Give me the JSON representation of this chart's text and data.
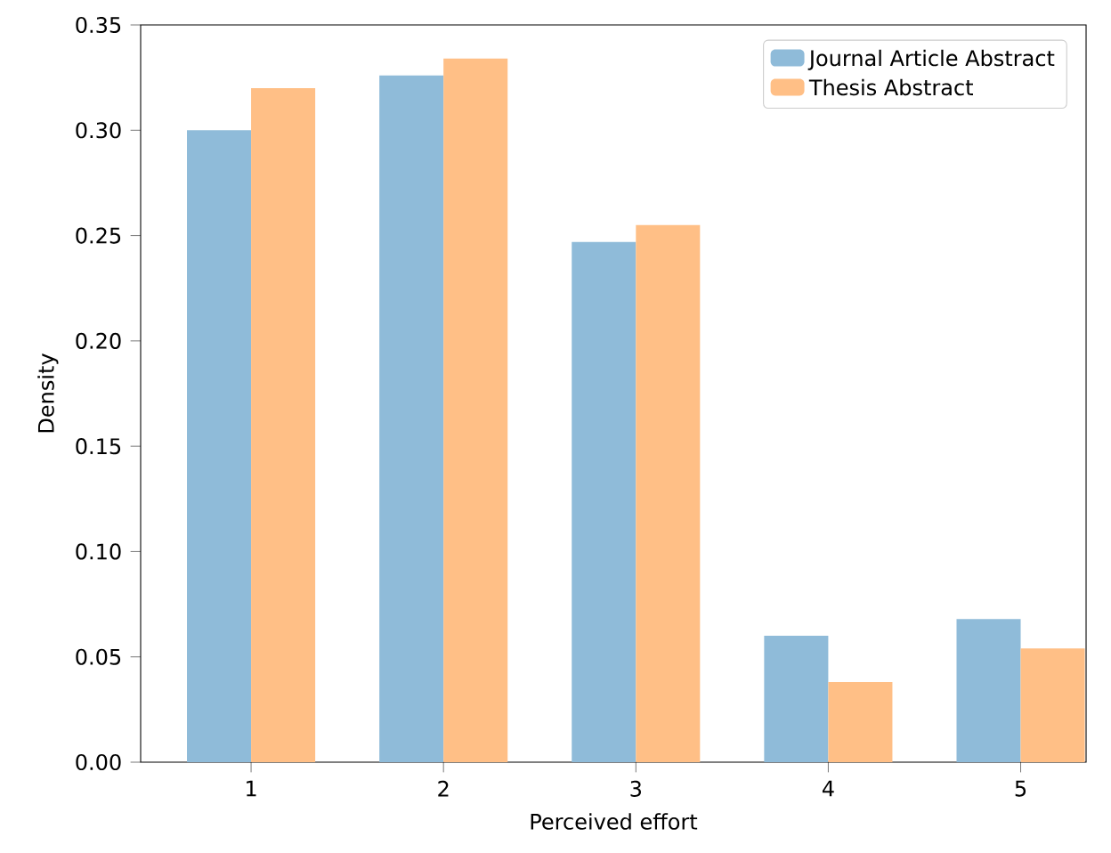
{
  "chart_data": {
    "type": "bar",
    "xlabel": "Perceived effort",
    "ylabel": "Density",
    "categories": [
      "1",
      "2",
      "3",
      "4",
      "5"
    ],
    "series": [
      {
        "name": "Journal Article Abstract",
        "color": "#8fbbd9",
        "values": [
          0.3,
          0.326,
          0.247,
          0.06,
          0.068
        ]
      },
      {
        "name": "Thesis Abstract",
        "color": "#ffbf86",
        "values": [
          0.32,
          0.334,
          0.255,
          0.038,
          0.054
        ]
      }
    ],
    "ylim": [
      0,
      0.35
    ],
    "yticks": [
      {
        "value": 0,
        "label": "0.00"
      },
      {
        "value": 0.05,
        "label": "0.05"
      },
      {
        "value": 0.1,
        "label": "0.10"
      },
      {
        "value": 0.15,
        "label": "0.15"
      },
      {
        "value": 0.2,
        "label": "0.20"
      },
      {
        "value": 0.25,
        "label": "0.25"
      },
      {
        "value": 0.3,
        "label": "0.30"
      },
      {
        "value": 0.35,
        "label": "0.35"
      }
    ],
    "legend": "top right",
    "grid": false
  }
}
